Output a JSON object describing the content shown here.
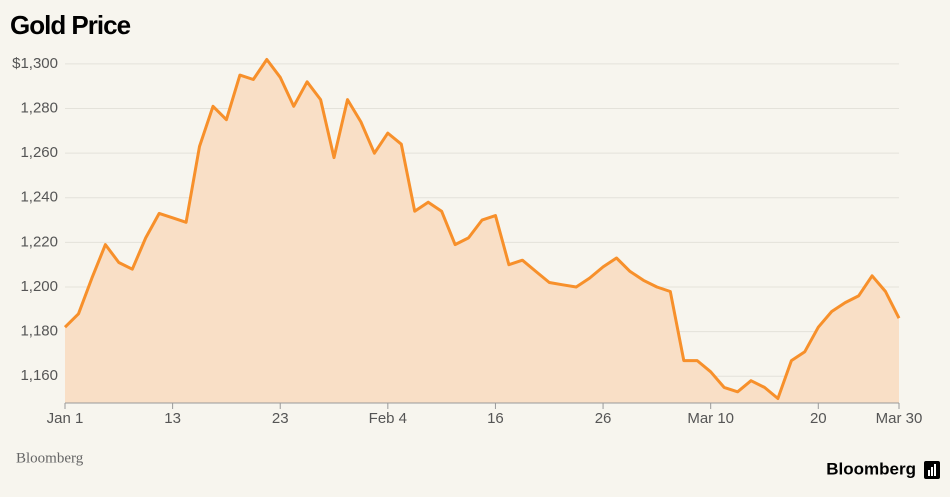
{
  "chart_data": {
    "type": "line",
    "title": "Gold Price",
    "source": "Bloomberg",
    "logo": "Bloomberg",
    "categories": [
      "Jan 1",
      null,
      null,
      null,
      null,
      null,
      null,
      null,
      "13",
      null,
      null,
      null,
      null,
      null,
      null,
      null,
      "23",
      null,
      null,
      null,
      null,
      null,
      null,
      null,
      "Feb 4",
      null,
      null,
      null,
      null,
      null,
      null,
      null,
      "16",
      null,
      null,
      null,
      null,
      null,
      null,
      null,
      "26",
      null,
      null,
      null,
      null,
      null,
      null,
      null,
      "Mar 10",
      null,
      null,
      null,
      null,
      null,
      null,
      null,
      "20",
      null,
      null,
      null,
      null,
      null,
      "Mar 30"
    ],
    "values": [
      1182,
      1188,
      1204,
      1219,
      1211,
      1208,
      1222,
      1233,
      1231,
      1229,
      1263,
      1281,
      1275,
      1295,
      1293,
      1302,
      1294,
      1281,
      1292,
      1284,
      1258,
      1284,
      1274,
      1260,
      1269,
      1264,
      1234,
      1238,
      1234,
      1219,
      1222,
      1230,
      1232,
      1210,
      1212,
      1207,
      1202,
      1201,
      1200,
      1204,
      1209,
      1213,
      1207,
      1203,
      1200,
      1198,
      1167,
      1167,
      1162,
      1155,
      1153,
      1158,
      1155,
      1150,
      1167,
      1171,
      1182,
      1189,
      1193,
      1196,
      1205,
      1198,
      1186
    ],
    "color": "#f7902b",
    "fill_color": "#f9dfc6",
    "ylim": [
      1148,
      1304
    ],
    "yticks": [
      {
        "value": 1160,
        "label": "1,160"
      },
      {
        "value": 1180,
        "label": "1,180"
      },
      {
        "value": 1200,
        "label": "1,200"
      },
      {
        "value": 1220,
        "label": "1,220"
      },
      {
        "value": 1240,
        "label": "1,240"
      },
      {
        "value": 1260,
        "label": "1,260"
      },
      {
        "value": 1280,
        "label": "1,280"
      },
      {
        "value": 1300,
        "label": "$1,300"
      }
    ],
    "grid": true
  }
}
